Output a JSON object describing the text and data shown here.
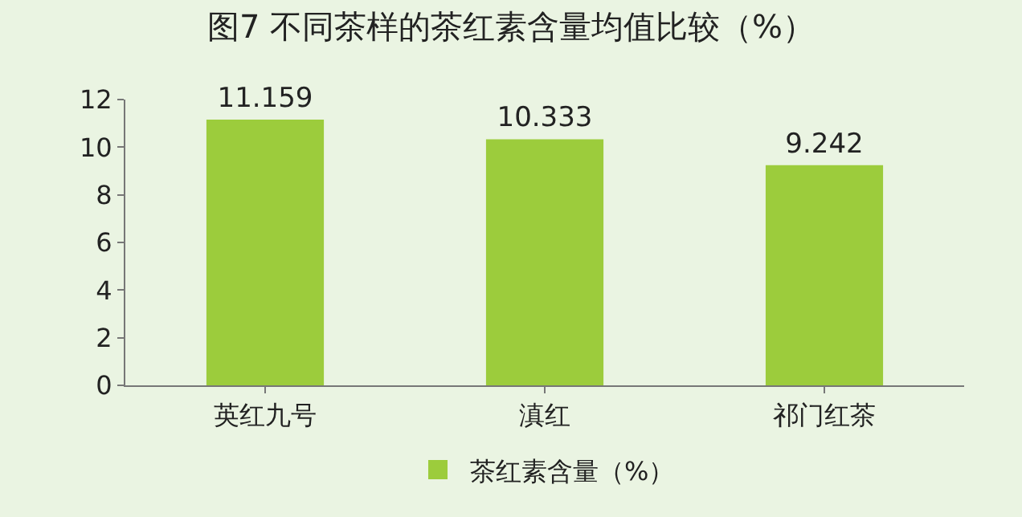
{
  "chart_data": {
    "type": "bar",
    "title": "图7 不同茶样的茶红素含量均值比较（%）",
    "categories": [
      "英红九号",
      "滇红",
      "祁门红茶"
    ],
    "series": [
      {
        "name": "茶红素含量（%）",
        "color": "#9ccc3c",
        "values": [
          11.159,
          10.333,
          9.242
        ]
      }
    ],
    "ylim": [
      0,
      12
    ],
    "yticks": [
      0,
      2,
      4,
      6,
      8,
      10,
      12
    ],
    "grid": false,
    "legend": "bottom",
    "data_labels": true
  }
}
